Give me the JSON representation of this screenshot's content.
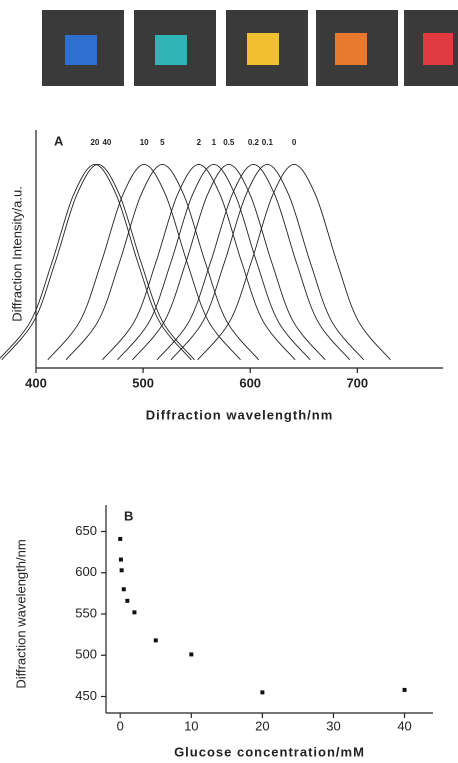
{
  "chart_data": [
    {
      "type": "line",
      "panel_label": "A",
      "x_label": "Diffraction wavelength/nm",
      "y_label": "Diffraction Intensity/a.u.",
      "xlim": [
        400,
        780
      ],
      "xticks": [
        400,
        500,
        600,
        700
      ],
      "ylim": [
        0,
        1.12
      ],
      "series": [
        {
          "name": "20",
          "color": "#222222",
          "x": [
            365,
            395,
            415,
            435,
            455,
            475,
            495,
            515,
            545
          ],
          "values": [
            0.04,
            0.23,
            0.52,
            0.85,
            1,
            0.85,
            0.52,
            0.23,
            0.04
          ]
        },
        {
          "name": "40",
          "color": "#222222",
          "x": [
            368,
            398,
            418,
            438,
            458,
            478,
            498,
            518,
            548
          ],
          "values": [
            0.04,
            0.23,
            0.52,
            0.85,
            1,
            0.85,
            0.52,
            0.23,
            0.04
          ]
        },
        {
          "name": "10",
          "color": "#222222",
          "x": [
            411,
            441,
            461,
            481,
            501,
            521,
            541,
            561,
            591
          ],
          "values": [
            0.04,
            0.23,
            0.52,
            0.85,
            1,
            0.85,
            0.52,
            0.23,
            0.04
          ]
        },
        {
          "name": "5",
          "color": "#222222",
          "x": [
            428,
            458,
            478,
            498,
            518,
            538,
            558,
            578,
            608
          ],
          "values": [
            0.04,
            0.23,
            0.52,
            0.85,
            1,
            0.85,
            0.52,
            0.23,
            0.04
          ]
        },
        {
          "name": "2",
          "color": "#222222",
          "x": [
            462,
            492,
            512,
            532,
            552,
            572,
            592,
            612,
            642
          ],
          "values": [
            0.04,
            0.23,
            0.52,
            0.85,
            1,
            0.85,
            0.52,
            0.23,
            0.04
          ]
        },
        {
          "name": "1",
          "color": "#222222",
          "x": [
            476,
            506,
            526,
            546,
            566,
            586,
            606,
            626,
            656
          ],
          "values": [
            0.04,
            0.23,
            0.52,
            0.85,
            1,
            0.85,
            0.52,
            0.23,
            0.04
          ]
        },
        {
          "name": "0.5",
          "color": "#222222",
          "x": [
            490,
            520,
            540,
            560,
            580,
            600,
            620,
            640,
            670
          ],
          "values": [
            0.04,
            0.23,
            0.52,
            0.85,
            1,
            0.85,
            0.52,
            0.23,
            0.04
          ]
        },
        {
          "name": "0.2",
          "color": "#222222",
          "x": [
            513,
            543,
            563,
            583,
            603,
            623,
            643,
            663,
            693
          ],
          "values": [
            0.04,
            0.23,
            0.52,
            0.85,
            1,
            0.85,
            0.52,
            0.23,
            0.04
          ]
        },
        {
          "name": "0.1",
          "color": "#222222",
          "x": [
            526,
            556,
            576,
            596,
            616,
            636,
            656,
            676,
            706
          ],
          "values": [
            0.04,
            0.23,
            0.52,
            0.85,
            1,
            0.85,
            0.52,
            0.23,
            0.04
          ]
        },
        {
          "name": "0",
          "color": "#222222",
          "x": [
            551,
            581,
            601,
            621,
            641,
            661,
            681,
            701,
            731
          ],
          "values": [
            0.04,
            0.23,
            0.52,
            0.85,
            1,
            0.85,
            0.52,
            0.23,
            0.04
          ]
        }
      ]
    },
    {
      "type": "scatter",
      "panel_label": "B",
      "x_label": "Glucose concentration/mM",
      "y_label": "Diffraction wavelength/nm",
      "xlim": [
        -2,
        44
      ],
      "xticks": [
        0,
        10,
        20,
        30,
        40
      ],
      "ylim": [
        430,
        670
      ],
      "yticks": [
        450,
        500,
        550,
        600,
        650
      ],
      "color": "#111111",
      "x": [
        0,
        0.1,
        0.2,
        0.5,
        1,
        2,
        5,
        10,
        20,
        40
      ],
      "values": [
        641,
        616,
        603,
        580,
        566,
        552,
        518,
        501,
        455,
        458
      ]
    }
  ]
}
